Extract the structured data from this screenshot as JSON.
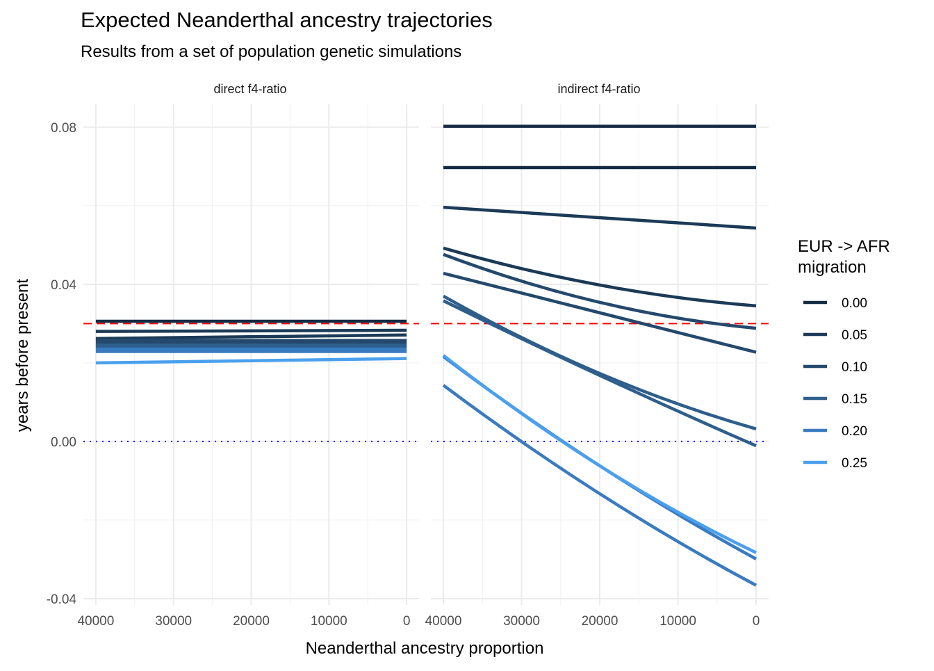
{
  "chart_data": {
    "type": "line",
    "title": "Expected Neanderthal ancestry trajectories",
    "subtitle": "Results from a set of population genetic simulations",
    "xlabel": "Neanderthal ancestry proportion",
    "ylabel": "years before present",
    "x_reversed": true,
    "xlim": [
      41600,
      -1600
    ],
    "ylim": [
      -0.0416,
      0.0858
    ],
    "x_ticks": [
      40000,
      30000,
      20000,
      10000,
      0
    ],
    "x_tick_labels": [
      "40000",
      "30000",
      "20000",
      "10000",
      "0"
    ],
    "y_ticks": [
      0.08,
      0.04,
      0.0,
      -0.04
    ],
    "y_tick_labels": [
      "0.08",
      "0.04",
      "0.00",
      "-0.04"
    ],
    "grid": true,
    "reference_lines": [
      {
        "y": 0.03,
        "style": "dashed",
        "color": "#FF0000"
      },
      {
        "y": 0.0,
        "style": "dotted",
        "color": "#0000FF"
      }
    ],
    "legend": {
      "title_lines": [
        "EUR -> AFR",
        "migration"
      ],
      "placement": "right",
      "entries": [
        {
          "label": "0.00",
          "color": "#132B43"
        },
        {
          "label": "0.05",
          "color": "#1B3A57"
        },
        {
          "label": "0.10",
          "color": "#24496D"
        },
        {
          "label": "0.15",
          "color": "#2E5E8C"
        },
        {
          "label": "0.20",
          "color": "#3A7BC0"
        },
        {
          "label": "0.25",
          "color": "#4AA0EE"
        }
      ]
    },
    "x": [
      40000,
      20000,
      0
    ],
    "panels": [
      {
        "title": "direct f4-ratio",
        "series": [
          {
            "migration": "0.00",
            "values": [
              0.0306,
              0.0306,
              0.0306
            ]
          },
          {
            "migration": "0.05",
            "values": [
              0.028,
              0.0281,
              0.0283
            ]
          },
          {
            "migration": "0.05",
            "values": [
              0.0262,
              0.0266,
              0.0271
            ]
          },
          {
            "migration": "0.10",
            "values": [
              0.0257,
              0.0257,
              0.0257
            ]
          },
          {
            "migration": "0.10",
            "values": [
              0.025,
              0.025,
              0.025
            ]
          },
          {
            "migration": "0.15",
            "values": [
              0.0245,
              0.0245,
              0.0245
            ]
          },
          {
            "migration": "0.15",
            "values": [
              0.024,
              0.024,
              0.024
            ]
          },
          {
            "migration": "0.20",
            "values": [
              0.0235,
              0.0235,
              0.0235
            ]
          },
          {
            "migration": "0.20",
            "values": [
              0.0229,
              0.0229,
              0.0229
            ]
          },
          {
            "migration": "0.25",
            "values": [
              0.02,
              0.0205,
              0.0211
            ]
          }
        ]
      },
      {
        "title": "indirect f4-ratio",
        "series": [
          {
            "migration": "0.00",
            "values": [
              0.0802,
              0.0802,
              0.0802
            ]
          },
          {
            "migration": "0.00",
            "values": [
              0.0697,
              0.0697,
              0.0697
            ]
          },
          {
            "migration": "0.05",
            "values": [
              0.0596,
              0.057,
              0.0543
            ]
          },
          {
            "migration": "0.05",
            "values": [
              0.0492,
              0.0398,
              0.0345
            ]
          },
          {
            "migration": "0.10",
            "values": [
              0.0476,
              0.0354,
              0.0288
            ]
          },
          {
            "migration": "0.10",
            "values": [
              0.0428,
              0.0327,
              0.0227
            ]
          },
          {
            "migration": "0.15",
            "values": [
              0.037,
              0.0173,
              0.0032
            ]
          },
          {
            "migration": "0.15",
            "values": [
              0.0358,
              0.0168,
              -0.0011
            ]
          },
          {
            "migration": "0.20",
            "values": [
              0.0216,
              -0.0062,
              -0.0299
            ]
          },
          {
            "migration": "0.20",
            "values": [
              0.0143,
              -0.0133,
              -0.0366
            ]
          },
          {
            "migration": "0.25",
            "values": [
              0.0219,
              -0.0062,
              -0.0283
            ]
          }
        ]
      }
    ]
  }
}
